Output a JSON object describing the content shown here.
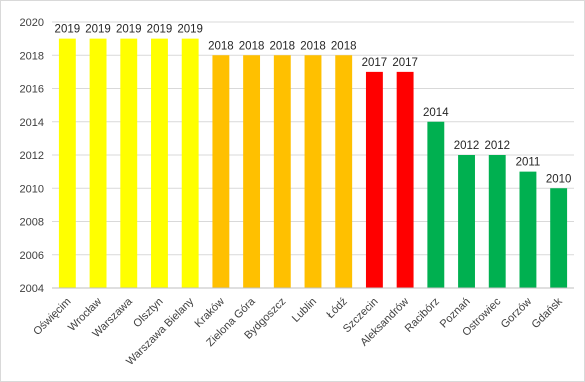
{
  "chart_data": {
    "type": "bar",
    "title": "",
    "xlabel": "",
    "ylabel": "",
    "ylim": [
      2004,
      2020
    ],
    "ytick_step": 2,
    "grid": "horizontal",
    "legend": "none",
    "show_data_labels": true,
    "categories": [
      "Oświęcim",
      "Wrocław",
      "Warszawa",
      "Olsztyn",
      "Warszawa Bielany",
      "Kraków",
      "Zielona Góra",
      "Bydgoszcz",
      "Lublin",
      "Łódź",
      "Szczecin",
      "Aleksandrów",
      "Racibórz",
      "Poznań",
      "Ostrowiec",
      "Gorzów",
      "Gdańsk"
    ],
    "values": [
      2019,
      2019,
      2019,
      2019,
      2019,
      2018,
      2018,
      2018,
      2018,
      2018,
      2017,
      2017,
      2014,
      2012,
      2012,
      2011,
      2010
    ],
    "bar_colors": [
      "#ffff00",
      "#ffff00",
      "#ffff00",
      "#ffff00",
      "#ffff00",
      "#ffc000",
      "#ffc000",
      "#ffc000",
      "#ffc000",
      "#ffc000",
      "#ff0000",
      "#ff0000",
      "#00b050",
      "#00b050",
      "#00b050",
      "#00b050",
      "#00b050"
    ],
    "colors": {
      "axis": "#bfbfbf",
      "grid": "#d9d9d9"
    }
  }
}
